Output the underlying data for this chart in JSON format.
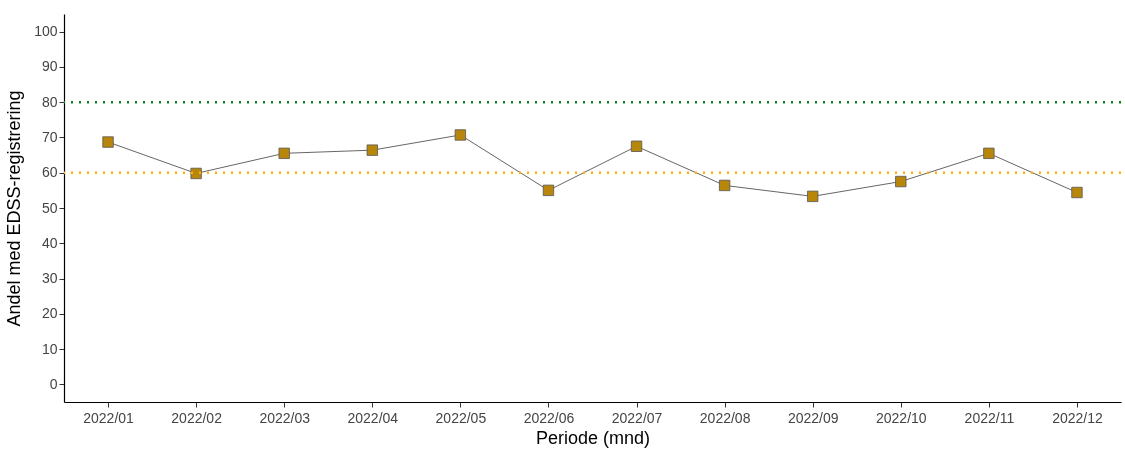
{
  "chart_data": {
    "type": "line",
    "xlabel": "Periode (mnd)",
    "ylabel": "Andel med EDSS-registrering",
    "categories": [
      "2022/01",
      "2022/02",
      "2022/03",
      "2022/04",
      "2022/05",
      "2022/06",
      "2022/07",
      "2022/08",
      "2022/09",
      "2022/10",
      "2022/11",
      "2022/12"
    ],
    "series": [
      {
        "color": "#b8860b",
        "values": [
          68.7,
          59.8,
          65.5,
          66.4,
          70.7,
          55.0,
          67.5,
          56.4,
          53.3,
          57.5,
          65.5,
          54.4
        ]
      }
    ],
    "ylim": [
      -5,
      105
    ],
    "yticks": [
      0,
      10,
      20,
      30,
      40,
      50,
      60,
      70,
      80,
      90,
      100
    ],
    "ref_lines": [
      {
        "axis": "y",
        "value": 80,
        "color": "#1a7a1a",
        "line_style": "dotted"
      },
      {
        "axis": "y",
        "value": 60,
        "color": "#ffb000",
        "line_style": "dotted"
      }
    ],
    "grid": false,
    "marker": "square",
    "line_style": "solid"
  }
}
